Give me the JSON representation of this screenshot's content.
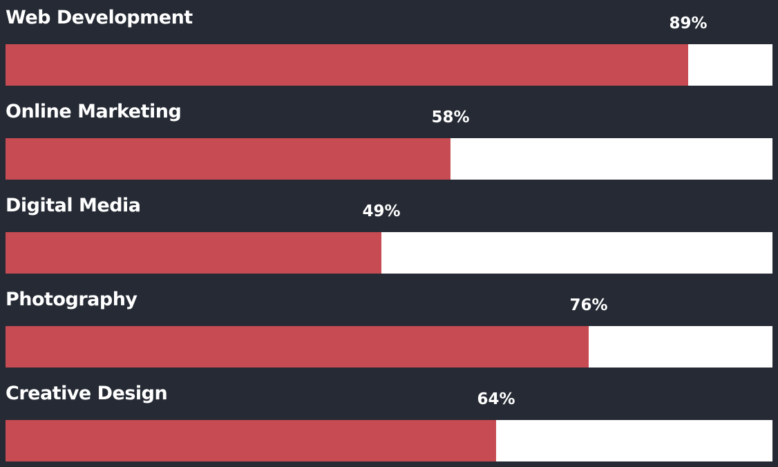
{
  "colors": {
    "background": "#252a34",
    "fill": "#c64b52",
    "track": "#ffffff",
    "text": "#ffffff"
  },
  "skills": [
    {
      "label": "Web Development",
      "value": 89,
      "percent_text": "89%"
    },
    {
      "label": "Online Marketing",
      "value": 58,
      "percent_text": "58%"
    },
    {
      "label": "Digital Media",
      "value": 49,
      "percent_text": "49%"
    },
    {
      "label": "Photography",
      "value": 76,
      "percent_text": "76%"
    },
    {
      "label": "Creative Design",
      "value": 64,
      "percent_text": "64%"
    }
  ]
}
